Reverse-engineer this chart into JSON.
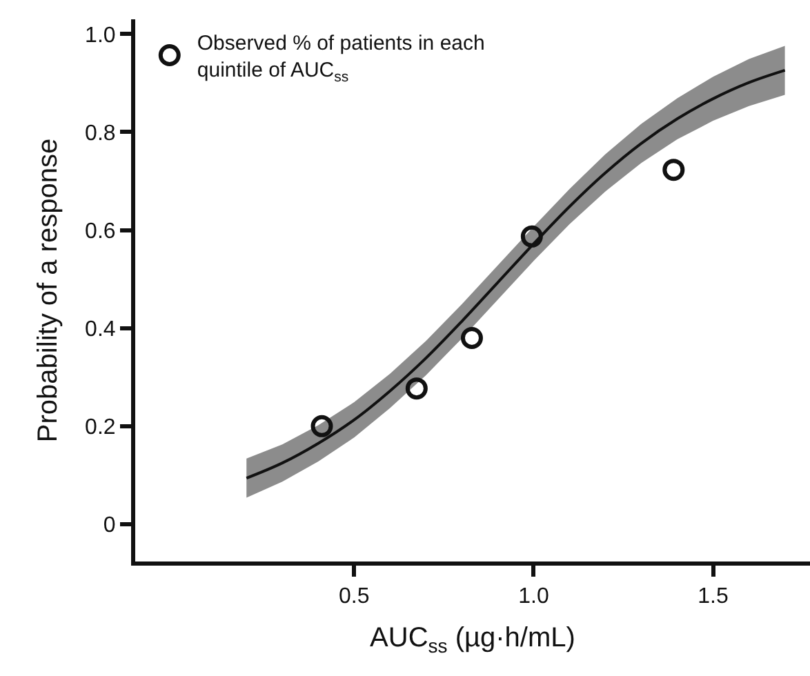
{
  "chart_data": {
    "type": "line",
    "xlabel": "AUC$_{ss}$ (µg·h/mL)",
    "ylabel": "Probability of a response",
    "xlim": [
      -0.11,
      1.77
    ],
    "ylim": [
      -0.076,
      1.03
    ],
    "xticks": [
      0.5,
      {
        "value": 1.0,
        "label": "1.0"
      },
      1.5
    ],
    "yticks": [
      0,
      0.2,
      0.4,
      0.6,
      0.8,
      {
        "value": 1.0,
        "label": "1.0"
      }
    ],
    "grid": false,
    "legend": "top left",
    "series": [
      {
        "color": "#111111",
        "line_style": "solid",
        "marker": "none",
        "x": [
          0.2,
          0.3,
          0.4,
          0.5,
          0.6,
          0.7,
          0.8,
          0.9,
          1.0,
          1.1,
          1.2,
          1.3,
          1.4,
          1.5,
          1.6,
          1.7
        ],
        "values": [
          0.094,
          0.125,
          0.165,
          0.213,
          0.272,
          0.339,
          0.414,
          0.493,
          0.572,
          0.648,
          0.717,
          0.777,
          0.827,
          0.868,
          0.901,
          0.926
        ],
        "lower": [
          0.054,
          0.087,
          0.128,
          0.177,
          0.237,
          0.304,
          0.379,
          0.458,
          0.537,
          0.612,
          0.679,
          0.737,
          0.785,
          0.823,
          0.853,
          0.876
        ],
        "upper": [
          0.134,
          0.163,
          0.202,
          0.249,
          0.307,
          0.374,
          0.449,
          0.528,
          0.607,
          0.684,
          0.755,
          0.817,
          0.869,
          0.913,
          0.949,
          0.976
        ]
      },
      {
        "type": "scatter",
        "name": "Observed % of patients in each\nquintile of AUC$_{ss}$",
        "color": "#111111",
        "marker": "circle",
        "x": [
          0.41,
          0.674,
          0.828,
          0.995,
          1.39
        ],
        "values": [
          0.2,
          0.277,
          0.38,
          0.587,
          0.723
        ]
      }
    ]
  }
}
